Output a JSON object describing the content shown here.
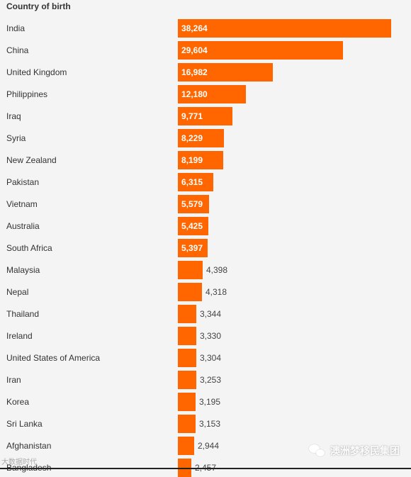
{
  "header": {
    "title": "Country of birth"
  },
  "chart_data": {
    "type": "bar",
    "orientation": "horizontal",
    "title": "Country of birth",
    "xlabel": "",
    "ylabel": "",
    "grid": false,
    "categories": [
      "India",
      "China",
      "United Kingdom",
      "Philippines",
      "Iraq",
      "Syria",
      "New Zealand",
      "Pakistan",
      "Vietnam",
      "Australia",
      "South Africa",
      "Malaysia",
      "Nepal",
      "Thailand",
      "Ireland",
      "United States of America",
      "Iran",
      "Korea",
      "Sri Lanka",
      "Afghanistan",
      "Bangladesh"
    ],
    "values": [
      38264,
      29604,
      16982,
      12180,
      9771,
      8229,
      8199,
      6315,
      5579,
      5425,
      5397,
      4398,
      4318,
      3344,
      3330,
      3304,
      3253,
      3195,
      3153,
      2944,
      2457
    ],
    "value_labels": [
      "38,264",
      "29,604",
      "16,982",
      "12,180",
      "9,771",
      "8,229",
      "8,199",
      "6,315",
      "5,579",
      "5,425",
      "5,397",
      "4,398",
      "4,318",
      "3,344",
      "3,330",
      "3,304",
      "3,253",
      "3,195",
      "3,153",
      "2,944",
      "2,457"
    ],
    "bar_color": "#ff6600"
  },
  "watermarks": {
    "left": "大数据时代",
    "right": "澳洲梦移民集团"
  }
}
